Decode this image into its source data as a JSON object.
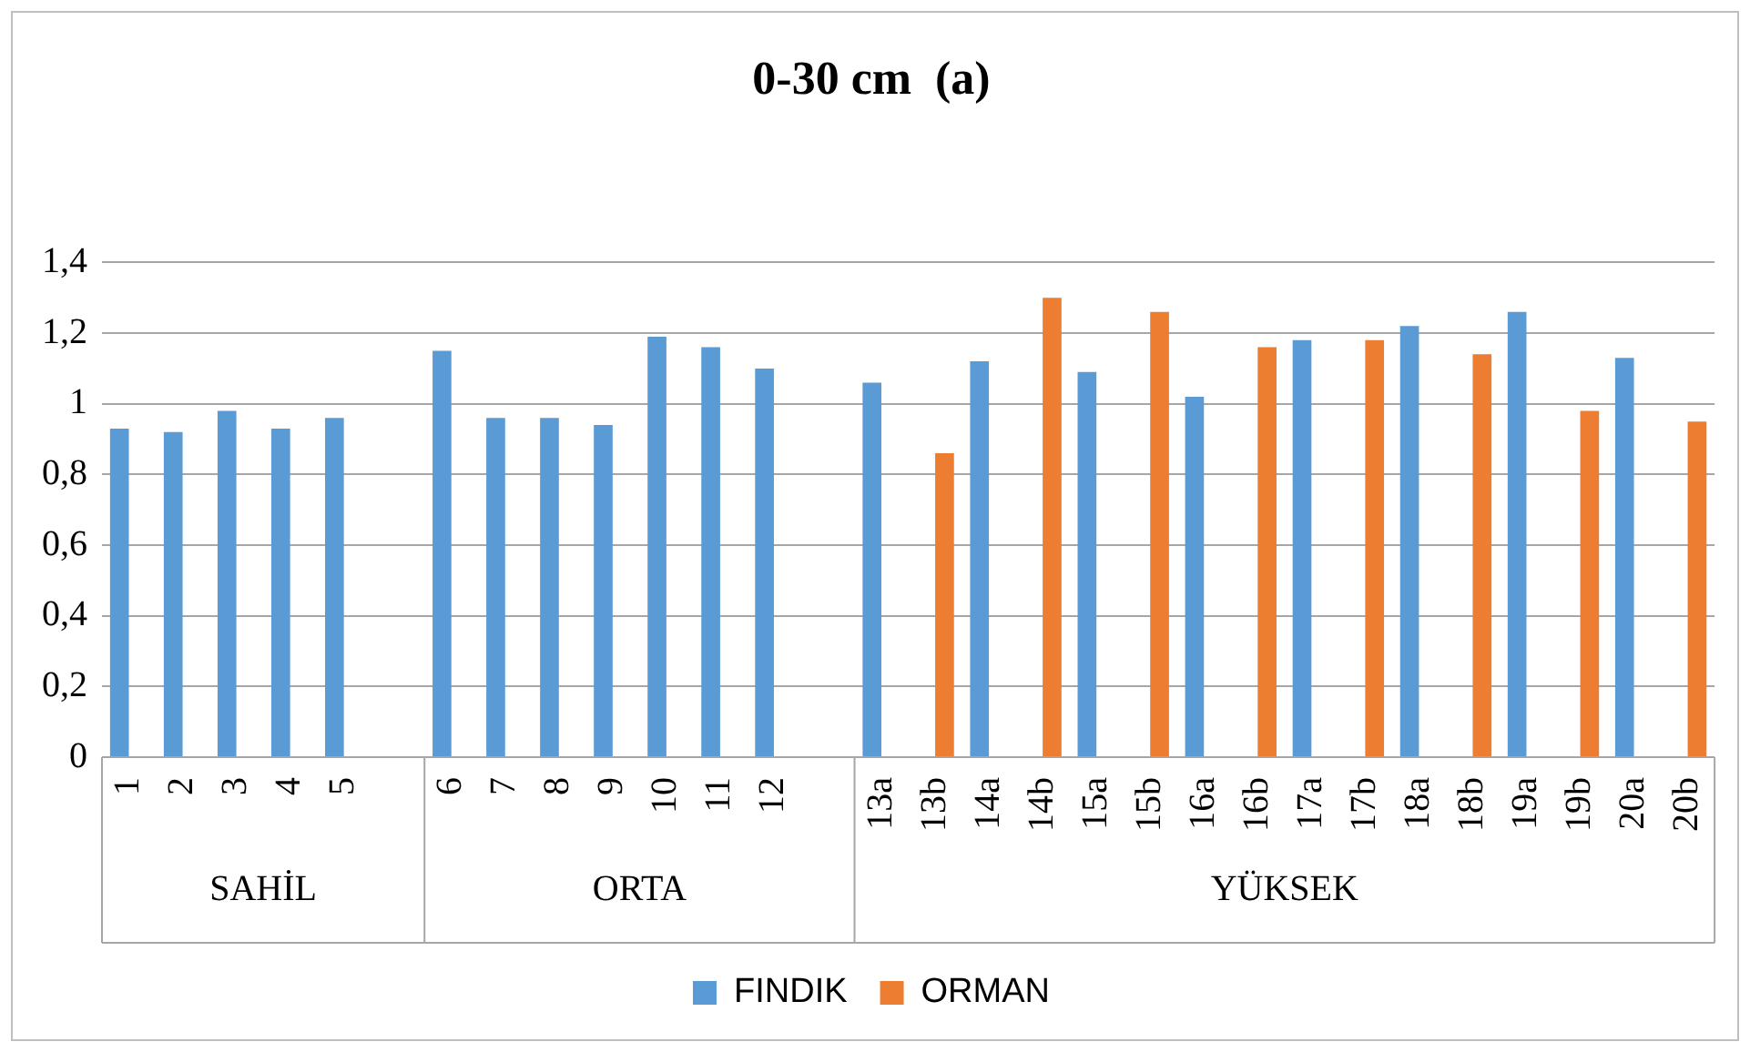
{
  "chart_data": {
    "type": "bar",
    "title": "0-30 cm  (a)",
    "categories": [
      "1",
      "2",
      "3",
      "4",
      "5",
      null,
      "6",
      "7",
      "8",
      "9",
      "10",
      "11",
      "12",
      null,
      "13a",
      "13b",
      "14a",
      "14b",
      "15a",
      "15b",
      "16a",
      "16b",
      "17a",
      "17b",
      "18a",
      "18b",
      "19a",
      "19b",
      "20a",
      "20b"
    ],
    "series": [
      {
        "name": "FINDIK",
        "color": "#5b9bd5",
        "values": [
          0.93,
          0.92,
          0.98,
          0.93,
          0.96,
          null,
          1.15,
          0.96,
          0.96,
          0.94,
          1.19,
          1.16,
          1.1,
          null,
          1.06,
          null,
          1.12,
          null,
          1.09,
          null,
          1.02,
          null,
          1.18,
          null,
          1.22,
          null,
          1.26,
          null,
          1.13,
          null
        ]
      },
      {
        "name": "ORMAN",
        "color": "#ed7d31",
        "values": [
          null,
          null,
          null,
          null,
          null,
          null,
          null,
          null,
          null,
          null,
          null,
          null,
          null,
          null,
          null,
          0.86,
          null,
          1.3,
          null,
          1.26,
          null,
          1.16,
          null,
          1.18,
          null,
          1.14,
          null,
          0.98,
          null,
          0.95
        ]
      }
    ],
    "annotations": [
      "SAHİL",
      "ORTA",
      "YÜKSEK"
    ],
    "ylim": [
      0,
      1.4
    ],
    "yticks": [
      0,
      {
        "value": 0.2,
        "label": "0,2"
      },
      {
        "value": 0.4,
        "label": "0,4"
      },
      {
        "value": 0.6,
        "label": "0,6"
      },
      {
        "value": 0.8,
        "label": "0,8"
      },
      1,
      {
        "value": 1.2,
        "label": "1,2"
      },
      {
        "value": 1.4,
        "label": "1,4"
      }
    ],
    "grid": "y",
    "legend": "bottom"
  }
}
